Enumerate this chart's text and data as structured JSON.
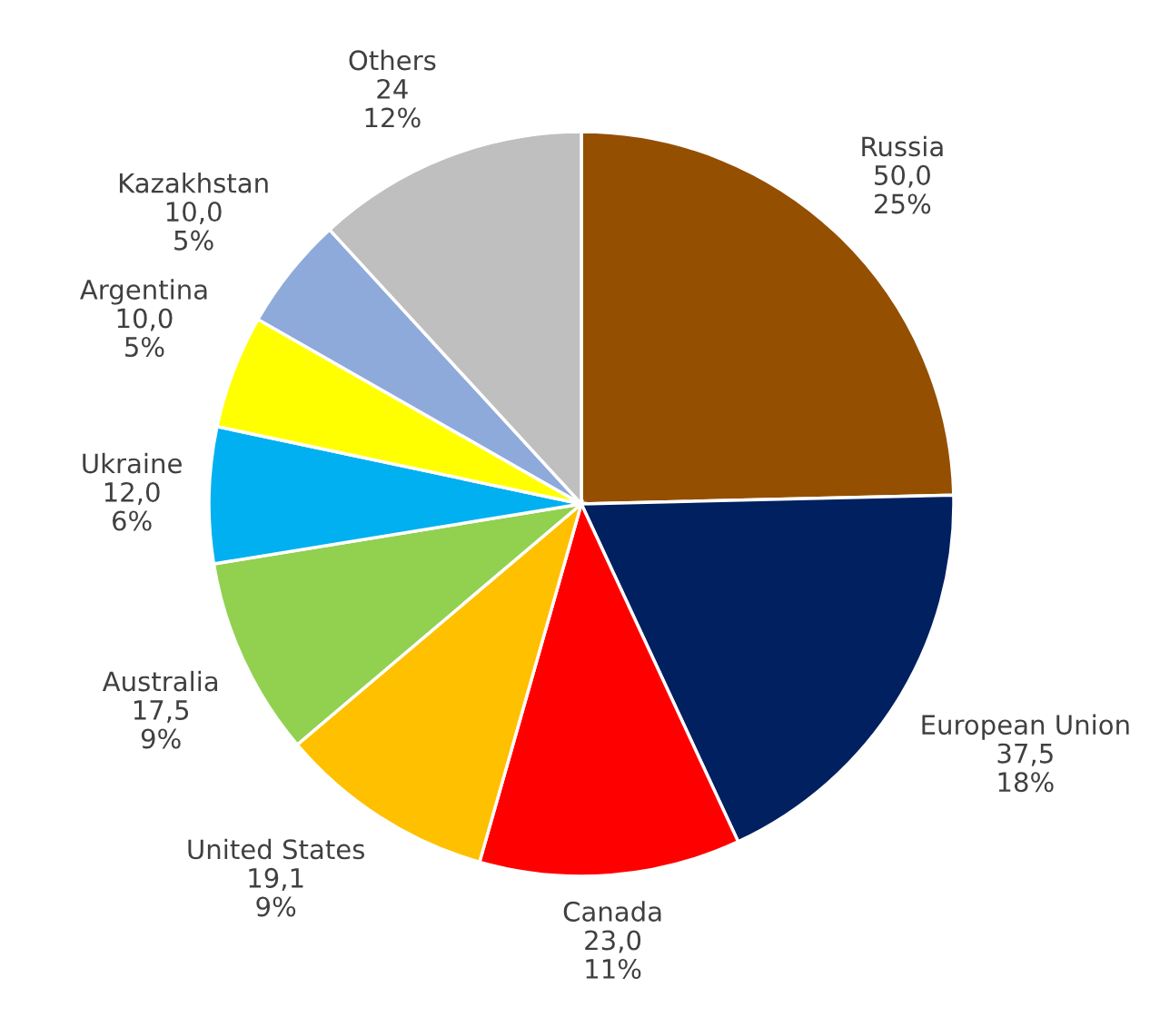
{
  "chart_data": {
    "type": "pie",
    "categories": [
      "Russia",
      "European Union",
      "Canada",
      "United States",
      "Australia",
      "Ukraine",
      "Argentina",
      "Kazakhstan",
      "Others"
    ],
    "values": [
      50.0,
      37.5,
      23.0,
      19.1,
      17.5,
      12.0,
      10.0,
      10.0,
      24
    ],
    "colors": [
      "#954f00",
      "#002060",
      "#ff0000",
      "#ffc000",
      "#92d050",
      "#00b0f0",
      "#ffff00",
      "#8eaadb",
      "#bfbfbf"
    ],
    "value_labels": [
      "50,0\n25%",
      "37,5\n18%",
      "23,0\n11%",
      "19,1\n9%",
      "17,5\n9%",
      "12,0\n6%",
      "10,0\n5%",
      "10,0\n5%",
      "24\n12%"
    ]
  }
}
